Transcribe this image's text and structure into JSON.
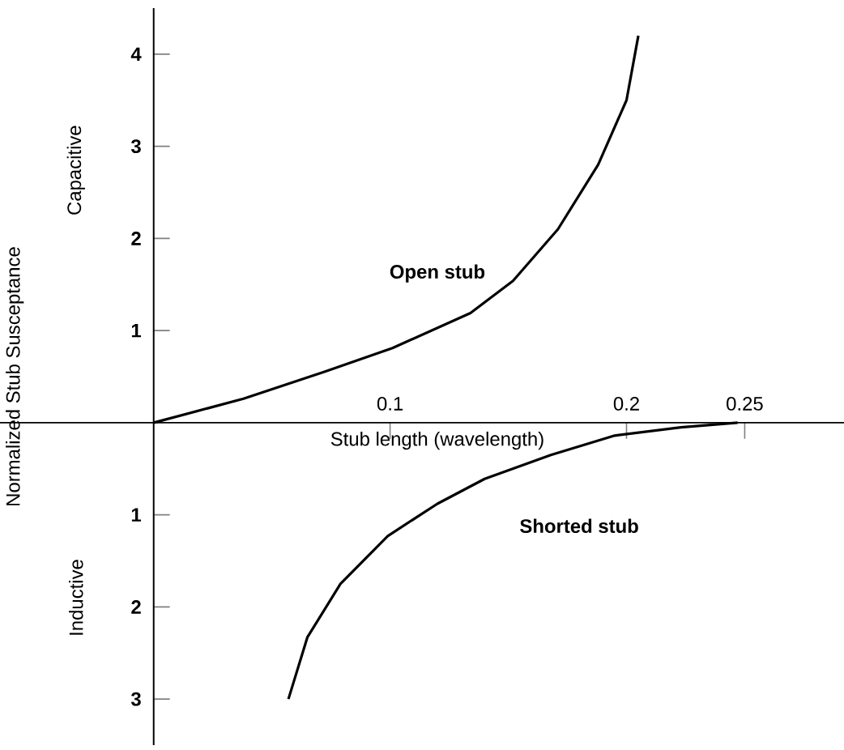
{
  "chart_data": {
    "type": "line",
    "xlabel": "Stub length (wavelength)",
    "ylabel": "Normalized Stub Susceptance",
    "annotations": [
      "Capacitive",
      "Inductive"
    ],
    "xlim": [
      -0.065,
      0.292
    ],
    "ylim": [
      -3.5,
      4.5
    ],
    "xticks": [
      0.1,
      0.2,
      0.25
    ],
    "yticks": [
      {
        "value": -3,
        "label": "3"
      },
      {
        "value": -2,
        "label": "2"
      },
      {
        "value": -1,
        "label": "1"
      },
      1,
      2,
      3,
      4
    ],
    "series": [
      {
        "name": "Open stub",
        "color": "#000000",
        "x": [
          0,
          0.038,
          0.072,
          0.101,
          0.134,
          0.152,
          0.171,
          0.188,
          0.2,
          0.205
        ],
        "values": [
          0,
          0.26,
          0.55,
          0.81,
          1.19,
          1.54,
          2.1,
          2.8,
          3.5,
          4.2
        ]
      },
      {
        "name": "Shorted stub",
        "color": "#000000",
        "x": [
          0.057,
          0.065,
          0.079,
          0.099,
          0.12,
          0.14,
          0.168,
          0.195,
          0.223,
          0.247
        ],
        "values": [
          -3.0,
          -2.33,
          -1.75,
          -1.23,
          -0.88,
          -0.61,
          -0.35,
          -0.14,
          -0.05,
          0
        ]
      }
    ],
    "marker": "none",
    "line_style": "solid",
    "grid": false,
    "legend": false
  }
}
